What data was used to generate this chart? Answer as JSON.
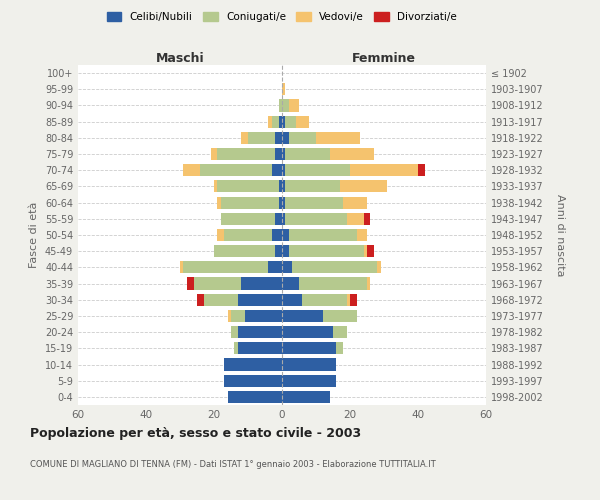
{
  "age_groups": [
    "100+",
    "95-99",
    "90-94",
    "85-89",
    "80-84",
    "75-79",
    "70-74",
    "65-69",
    "60-64",
    "55-59",
    "50-54",
    "45-49",
    "40-44",
    "35-39",
    "30-34",
    "25-29",
    "20-24",
    "15-19",
    "10-14",
    "5-9",
    "0-4"
  ],
  "birth_years": [
    "≤ 1902",
    "1903-1907",
    "1908-1912",
    "1913-1917",
    "1918-1922",
    "1923-1927",
    "1928-1932",
    "1933-1937",
    "1938-1942",
    "1943-1947",
    "1948-1952",
    "1953-1957",
    "1958-1962",
    "1963-1967",
    "1968-1972",
    "1973-1977",
    "1978-1982",
    "1983-1987",
    "1988-1992",
    "1993-1997",
    "1998-2002"
  ],
  "maschi_celibi": [
    0,
    0,
    0,
    1,
    2,
    2,
    3,
    1,
    1,
    2,
    3,
    2,
    4,
    12,
    13,
    11,
    13,
    13,
    17,
    17,
    16
  ],
  "maschi_coniugati": [
    0,
    0,
    1,
    2,
    8,
    17,
    21,
    18,
    17,
    16,
    14,
    18,
    25,
    14,
    10,
    4,
    2,
    1,
    0,
    0,
    0
  ],
  "maschi_vedovi": [
    0,
    0,
    0,
    1,
    2,
    2,
    5,
    1,
    1,
    0,
    2,
    0,
    1,
    0,
    0,
    1,
    0,
    0,
    0,
    0,
    0
  ],
  "maschi_divorziati": [
    0,
    0,
    0,
    0,
    0,
    0,
    0,
    0,
    0,
    0,
    0,
    0,
    0,
    2,
    2,
    0,
    0,
    0,
    0,
    0,
    0
  ],
  "femmine_nubili": [
    0,
    0,
    0,
    1,
    2,
    1,
    1,
    1,
    1,
    1,
    2,
    2,
    3,
    5,
    6,
    12,
    15,
    16,
    16,
    16,
    14
  ],
  "femmine_coniugate": [
    0,
    0,
    2,
    3,
    8,
    13,
    19,
    16,
    17,
    18,
    20,
    22,
    25,
    20,
    13,
    10,
    4,
    2,
    0,
    0,
    0
  ],
  "femmine_vedove": [
    0,
    1,
    3,
    4,
    13,
    13,
    20,
    14,
    7,
    5,
    3,
    1,
    1,
    1,
    1,
    0,
    0,
    0,
    0,
    0,
    0
  ],
  "femmine_divorziate": [
    0,
    0,
    0,
    0,
    0,
    0,
    2,
    0,
    0,
    2,
    0,
    2,
    0,
    0,
    2,
    0,
    0,
    0,
    0,
    0,
    0
  ],
  "color_celibi": "#2e5fa3",
  "color_coniugati": "#b5c98e",
  "color_vedovi": "#f5c36e",
  "color_divorziati": "#cc1f1f",
  "xlim": 60,
  "title": "Popolazione per età, sesso e stato civile - 2003",
  "subtitle": "COMUNE DI MAGLIANO DI TENNA (FM) - Dati ISTAT 1° gennaio 2003 - Elaborazione TUTTITALIA.IT",
  "ylabel_left": "Fasce di età",
  "ylabel_right": "Anni di nascita",
  "xlabel_maschi": "Maschi",
  "xlabel_femmine": "Femmine",
  "bg_color": "#f0f0eb",
  "plot_bg": "#ffffff",
  "legend_labels": [
    "Celibi/Nubili",
    "Coniugati/e",
    "Vedovi/e",
    "Divorziati/e"
  ]
}
